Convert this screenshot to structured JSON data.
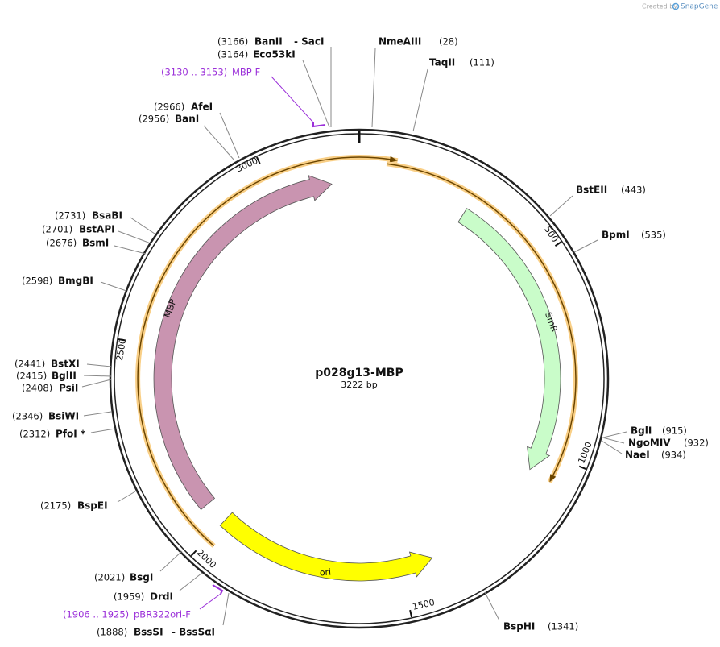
{
  "header": {
    "created_by": "Created by",
    "brand": "SnapGene"
  },
  "plasmid": {
    "name": "p028g13-MBP",
    "size": "3222 bp"
  },
  "sites": [
    {
      "name": "BanII",
      "partner": "- SacI",
      "position": "(3166)"
    },
    {
      "name": "Eco53kI",
      "position": "(3164)"
    },
    {
      "name": "NmeAIII",
      "position": "(28)"
    },
    {
      "name": "TaqII",
      "position": "(111)"
    },
    {
      "name": "AfeI",
      "position": "(2966)"
    },
    {
      "name": "BanI",
      "position": "(2956)"
    },
    {
      "name": "BstEII",
      "position": "(443)"
    },
    {
      "name": "BpmI",
      "position": "(535)"
    },
    {
      "name": "BsaBI",
      "position": "(2731)"
    },
    {
      "name": "BstAPI",
      "position": "(2701)"
    },
    {
      "name": "BsmI",
      "position": "(2676)"
    },
    {
      "name": "BmgBI",
      "position": "(2598)"
    },
    {
      "name": "BstXI",
      "position": "(2441)"
    },
    {
      "name": "BglII",
      "position": "(2415)"
    },
    {
      "name": "PsiI",
      "position": "(2408)"
    },
    {
      "name": "BsiWI",
      "position": "(2346)"
    },
    {
      "name": "PfoI *",
      "position": "(2312)"
    },
    {
      "name": "BglI",
      "position": "(915)"
    },
    {
      "name": "NgoMIV",
      "position": "(932)"
    },
    {
      "name": "NaeI",
      "position": "(934)"
    },
    {
      "name": "BspEI",
      "position": "(2175)"
    },
    {
      "name": "BsgI",
      "position": "(2021)"
    },
    {
      "name": "DrdI",
      "position": "(1959)"
    },
    {
      "name": "BssSI",
      "partner": "- BssSαI",
      "position": "(1888)"
    },
    {
      "name": "BspHI",
      "position": "(1341)"
    }
  ],
  "primers": [
    {
      "name": "MBP-F",
      "range": "(3130 .. 3153)"
    },
    {
      "name": "pBR322ori-F",
      "range": "(1906 .. 1925)"
    }
  ],
  "features": [
    {
      "name": "MBP"
    },
    {
      "name": "SmR"
    },
    {
      "name": "ori"
    }
  ],
  "ticks": [
    "500",
    "1000",
    "1500",
    "2000",
    "2500",
    "3000"
  ]
}
